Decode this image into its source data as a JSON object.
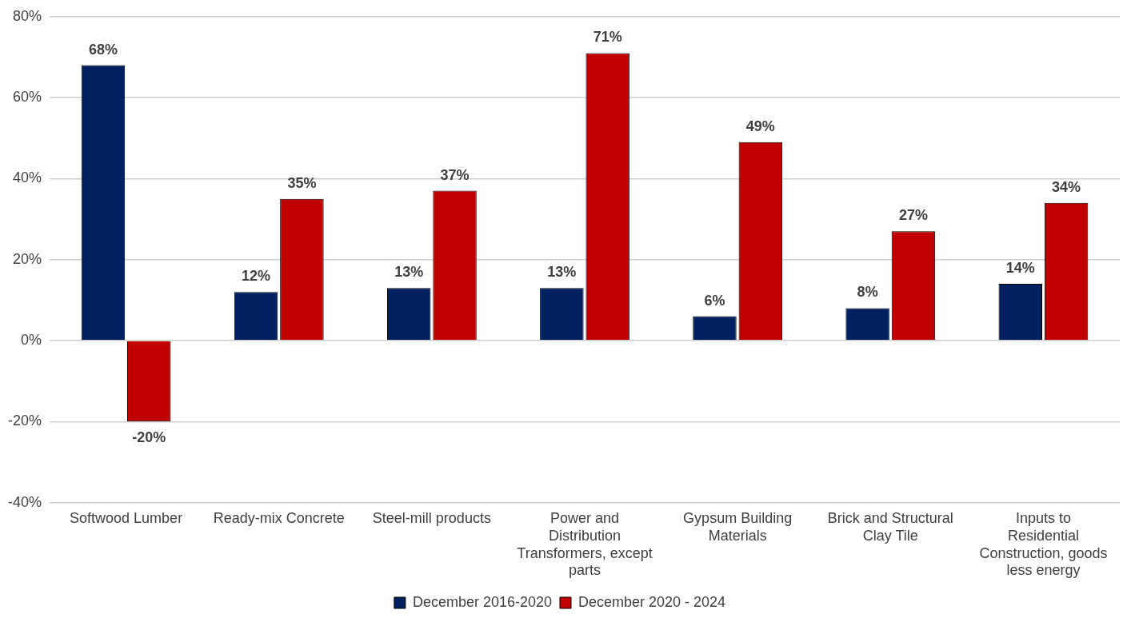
{
  "chart_data": {
    "type": "bar",
    "categories": [
      "Softwood Lumber",
      "Ready-mix Concrete",
      "Steel-mill products",
      "Power and Distribution Transformers, except parts",
      "Gypsum Building Materials",
      "Brick and Structural Clay Tile",
      "Inputs to Residential Construction, goods less energy"
    ],
    "series": [
      {
        "name": "December 2016-2020",
        "color": "#002060",
        "values": [
          68,
          12,
          13,
          13,
          6,
          8,
          14
        ],
        "value_labels": [
          "68%",
          "12%",
          "13%",
          "13%",
          "6%",
          "8%",
          "14%"
        ]
      },
      {
        "name": "December 2020 - 2024",
        "color": "#c00000",
        "values": [
          -20,
          35,
          37,
          71,
          49,
          27,
          34
        ],
        "value_labels": [
          "-20%",
          "35%",
          "37%",
          "71%",
          "49%",
          "27%",
          "34%"
        ]
      }
    ],
    "ylim": [
      -40,
      80
    ],
    "yticks": [
      {
        "value": -40,
        "label": "-40%"
      },
      {
        "value": -20,
        "label": "-20%"
      },
      {
        "value": 0,
        "label": "0%"
      },
      {
        "value": 20,
        "label": "20%"
      },
      {
        "value": 40,
        "label": "40%"
      },
      {
        "value": 60,
        "label": "60%"
      },
      {
        "value": 80,
        "label": "80%"
      }
    ],
    "grid": "y",
    "legend": "bottom"
  }
}
